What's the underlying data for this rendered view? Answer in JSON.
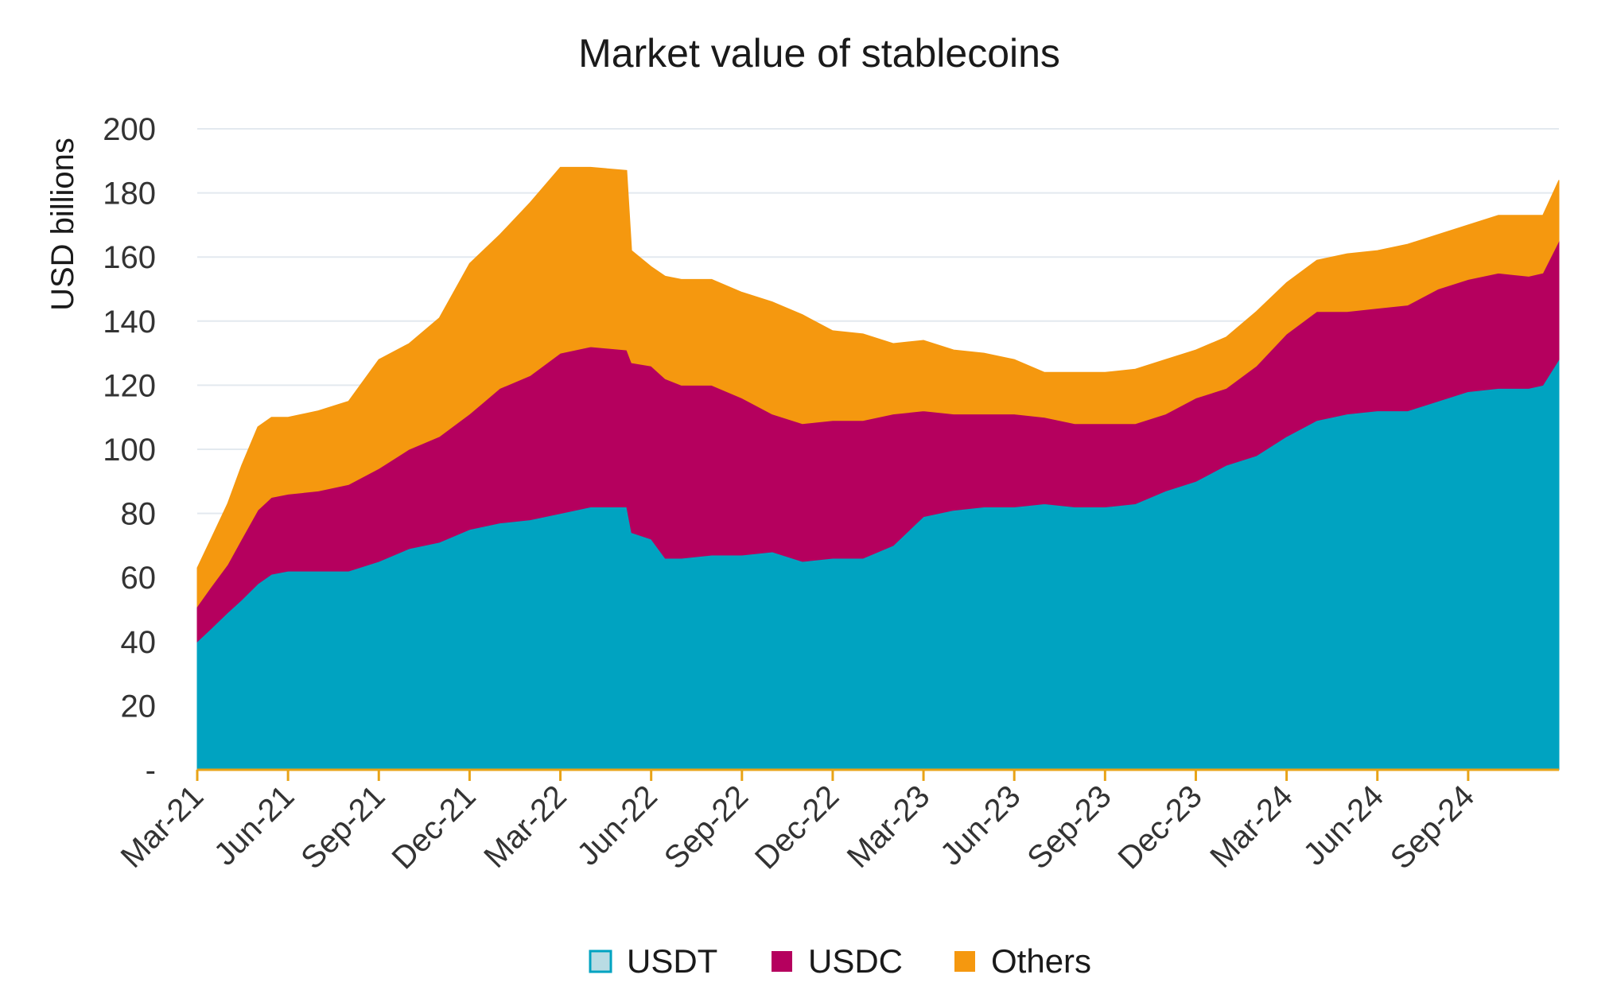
{
  "colors": {
    "USDT": "#00A3C1",
    "USDC": "#B5005E",
    "Others": "#F5980F",
    "grid": "#E3E9EF",
    "axis": "#E8A317"
  },
  "chart_data": {
    "type": "area",
    "stacked": true,
    "title": "Market value of stablecoins",
    "ylabel": "USD billions",
    "xlabel": "",
    "ylim": [
      0,
      200
    ],
    "yticks": [
      0,
      20,
      40,
      60,
      80,
      100,
      120,
      140,
      160,
      180,
      200
    ],
    "ytick_labels": [
      "-",
      "20",
      "40",
      "60",
      "80",
      "100",
      "120",
      "140",
      "160",
      "180",
      "200"
    ],
    "xticks": [
      "Mar-21",
      "Jun-21",
      "Sep-21",
      "Dec-21",
      "Mar-22",
      "Jun-22",
      "Sep-22",
      "Dec-22",
      "Mar-23",
      "Jun-23",
      "Sep-23",
      "Dec-23",
      "Mar-24",
      "Jun-24",
      "Sep-24"
    ],
    "grid": true,
    "legend_position": "bottom",
    "x": [
      "2021-03-01",
      "2021-03-15",
      "2021-04-01",
      "2021-04-15",
      "2021-05-01",
      "2021-05-15",
      "2021-06-01",
      "2021-07-01",
      "2021-08-01",
      "2021-09-01",
      "2021-10-01",
      "2021-11-01",
      "2021-12-01",
      "2022-01-01",
      "2022-02-01",
      "2022-03-01",
      "2022-04-01",
      "2022-05-07",
      "2022-05-12",
      "2022-06-01",
      "2022-06-15",
      "2022-07-01",
      "2022-08-01",
      "2022-09-01",
      "2022-10-01",
      "2022-11-01",
      "2022-12-01",
      "2023-01-01",
      "2023-02-01",
      "2023-03-01",
      "2023-04-01",
      "2023-05-01",
      "2023-06-01",
      "2023-07-01",
      "2023-08-01",
      "2023-09-01",
      "2023-10-01",
      "2023-11-01",
      "2023-12-01",
      "2024-01-01",
      "2024-02-01",
      "2024-03-01",
      "2024-04-01",
      "2024-05-01",
      "2024-06-01",
      "2024-07-01",
      "2024-08-01",
      "2024-09-01",
      "2024-10-01",
      "2024-11-01",
      "2024-11-15",
      "2024-12-01"
    ],
    "series": [
      {
        "name": "USDT",
        "values": [
          40,
          44,
          49,
          53,
          58,
          61,
          62,
          62,
          62,
          65,
          69,
          71,
          75,
          77,
          78,
          80,
          82,
          82,
          74,
          72,
          66,
          66,
          67,
          67,
          68,
          65,
          66,
          66,
          70,
          79,
          81,
          82,
          82,
          83,
          82,
          82,
          83,
          87,
          90,
          95,
          98,
          104,
          109,
          111,
          112,
          112,
          115,
          118,
          119,
          119,
          120,
          128
        ]
      },
      {
        "name": "USDC",
        "values": [
          11,
          13,
          15,
          19,
          23,
          24,
          24,
          25,
          27,
          29,
          31,
          33,
          36,
          42,
          45,
          50,
          50,
          49,
          53,
          54,
          56,
          54,
          53,
          49,
          43,
          43,
          43,
          43,
          41,
          33,
          30,
          29,
          29,
          27,
          26,
          26,
          25,
          24,
          26,
          24,
          28,
          32,
          34,
          32,
          32,
          33,
          35,
          35,
          36,
          35,
          35,
          37
        ]
      },
      {
        "name": "Others",
        "values": [
          12,
          15,
          19,
          23,
          26,
          25,
          24,
          25,
          26,
          34,
          33,
          37,
          47,
          48,
          54,
          58,
          56,
          56,
          35,
          31,
          32,
          33,
          33,
          33,
          35,
          34,
          28,
          27,
          22,
          22,
          20,
          19,
          17,
          14,
          16,
          16,
          17,
          17,
          15,
          16,
          17,
          16,
          16,
          18,
          18,
          19,
          17,
          17,
          18,
          19,
          18,
          19
        ]
      }
    ]
  }
}
